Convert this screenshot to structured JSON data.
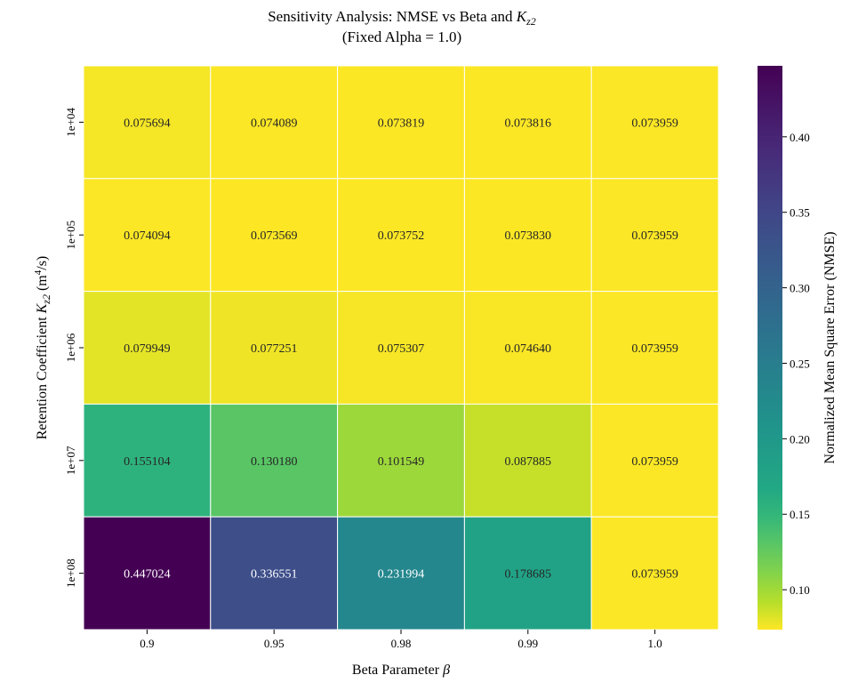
{
  "chart_data": {
    "type": "heatmap",
    "title_line1_prefix": "Sensitivity Analysis: NMSE vs Beta and ",
    "title_line1_symbol": "K",
    "title_line1_sub": "z2",
    "title_line2": "(Fixed Alpha = 1.0)",
    "xlabel_prefix": "Beta Parameter ",
    "xlabel_symbol": "β",
    "ylabel_prefix": "Retention Coefficient ",
    "ylabel_symbol": "K",
    "ylabel_sub": "z2",
    "ylabel_units_open": " (m",
    "ylabel_units_sup": "4",
    "ylabel_units_close": "/s)",
    "x_categories": [
      "0.9",
      "0.95",
      "0.98",
      "0.99",
      "1.0"
    ],
    "y_categories": [
      "1e+04",
      "1e+05",
      "1e+06",
      "1e+07",
      "1e+08"
    ],
    "values": [
      [
        0.075694,
        0.074089,
        0.073819,
        0.073816,
        0.073959
      ],
      [
        0.074094,
        0.073569,
        0.073752,
        0.07383,
        0.073959
      ],
      [
        0.079949,
        0.077251,
        0.075307,
        0.07464,
        0.073959
      ],
      [
        0.155104,
        0.13018,
        0.101549,
        0.087885,
        0.073959
      ],
      [
        0.447024,
        0.336551,
        0.231994,
        0.178685,
        0.073959
      ]
    ],
    "cell_labels": [
      [
        "0.075694",
        "0.074089",
        "0.073819",
        "0.073816",
        "0.073959"
      ],
      [
        "0.074094",
        "0.073569",
        "0.073752",
        "0.073830",
        "0.073959"
      ],
      [
        "0.079949",
        "0.077251",
        "0.075307",
        "0.074640",
        "0.073959"
      ],
      [
        "0.155104",
        "0.130180",
        "0.101549",
        "0.087885",
        "0.073959"
      ],
      [
        "0.447024",
        "0.336551",
        "0.231994",
        "0.178685",
        "0.073959"
      ]
    ],
    "colormap": "viridis_r",
    "color_range": [
      0.073569,
      0.447024
    ],
    "colorbar": {
      "label": "Normalized Mean Square Error (NMSE)",
      "ticks": [
        0.1,
        0.15,
        0.2,
        0.25,
        0.3,
        0.35,
        0.4
      ],
      "tick_labels": [
        "0.10",
        "0.15",
        "0.20",
        "0.25",
        "0.30",
        "0.35",
        "0.40"
      ]
    },
    "grid": false
  }
}
